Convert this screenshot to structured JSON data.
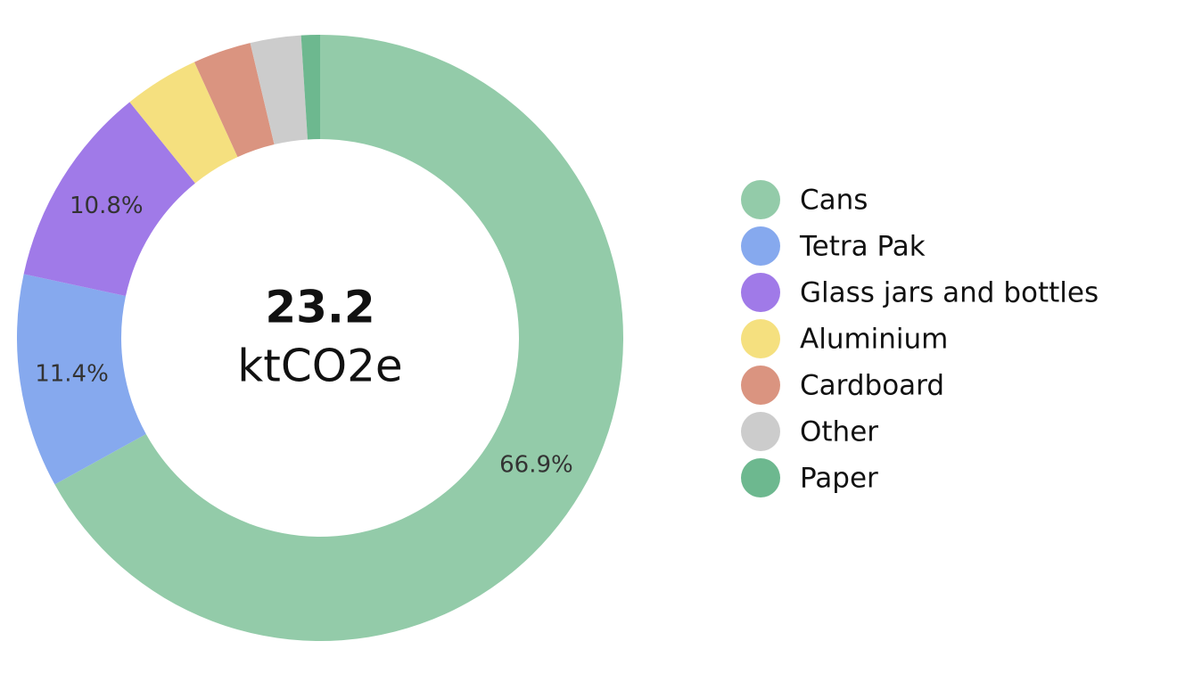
{
  "chart_data": {
    "type": "donut",
    "categories": [
      "Cans",
      "Tetra Pak",
      "Glass jars and bottles",
      "Aluminium",
      "Cardboard",
      "Other",
      "Paper"
    ],
    "values": [
      66.9,
      11.4,
      10.8,
      4.0,
      3.1,
      2.7,
      1.0
    ],
    "value_labels": [
      "66.9%",
      "11.4%",
      "10.8%",
      null,
      null,
      null,
      null
    ],
    "colors": [
      "#93cba9",
      "#86a9ee",
      "#a07ae8",
      "#f5e07f",
      "#da9480",
      "#cccccc",
      "#6db88f"
    ],
    "center_value": "23.2",
    "center_unit": "ktCO2e",
    "legend": "right"
  }
}
